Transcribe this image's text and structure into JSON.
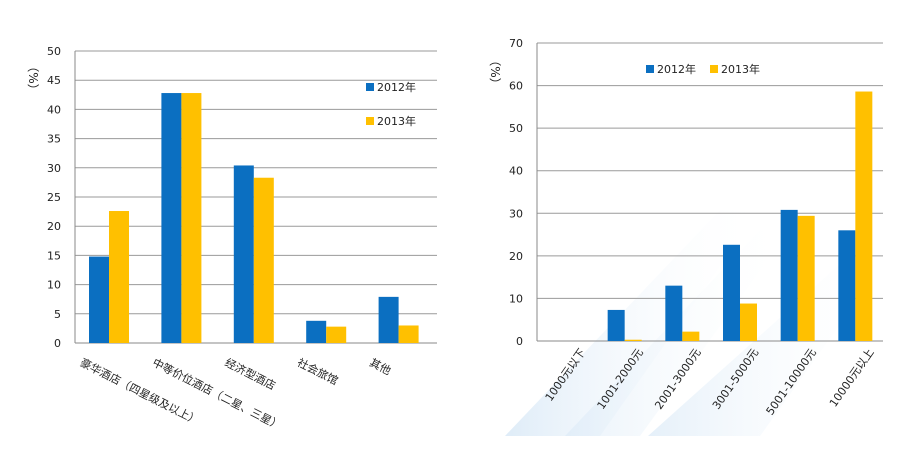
{
  "chart_data": [
    {
      "type": "bar",
      "ylabel": "（%）",
      "ylim": [
        0,
        50
      ],
      "yticks": [
        0,
        5,
        10,
        15,
        20,
        25,
        30,
        35,
        40,
        45,
        50
      ],
      "categories": [
        "豪华酒店（四星级及以上）",
        "中等价位酒店（二星、三星）",
        "经济型酒店",
        "社会旅馆",
        "其他"
      ],
      "series": [
        {
          "name": "2012年",
          "color": "#0b6fc1",
          "values": [
            14.8,
            42.8,
            30.4,
            3.8,
            7.9
          ]
        },
        {
          "name": "2013年",
          "color": "#ffc000",
          "values": [
            22.6,
            42.8,
            28.3,
            2.8,
            3.0
          ]
        }
      ],
      "legend_position": "right, stacked vertically",
      "grid": true
    },
    {
      "type": "bar",
      "ylabel": "（%）",
      "ylim": [
        0,
        70
      ],
      "yticks": [
        0,
        10,
        20,
        30,
        40,
        50,
        60,
        70
      ],
      "categories": [
        "1000元以下",
        "1001-2000元",
        "2001-3000元",
        "3001-5000元",
        "5001-10000元",
        "10000元以上"
      ],
      "series": [
        {
          "name": "2012年",
          "color": "#0b6fc1",
          "values": [
            0,
            7.3,
            13.0,
            22.6,
            30.8,
            26.0
          ]
        },
        {
          "name": "2013年",
          "color": "#ffc000",
          "values": [
            0,
            0.3,
            2.2,
            8.8,
            29.4,
            58.6
          ]
        }
      ],
      "legend_position": "top, horizontal",
      "grid": true
    }
  ]
}
